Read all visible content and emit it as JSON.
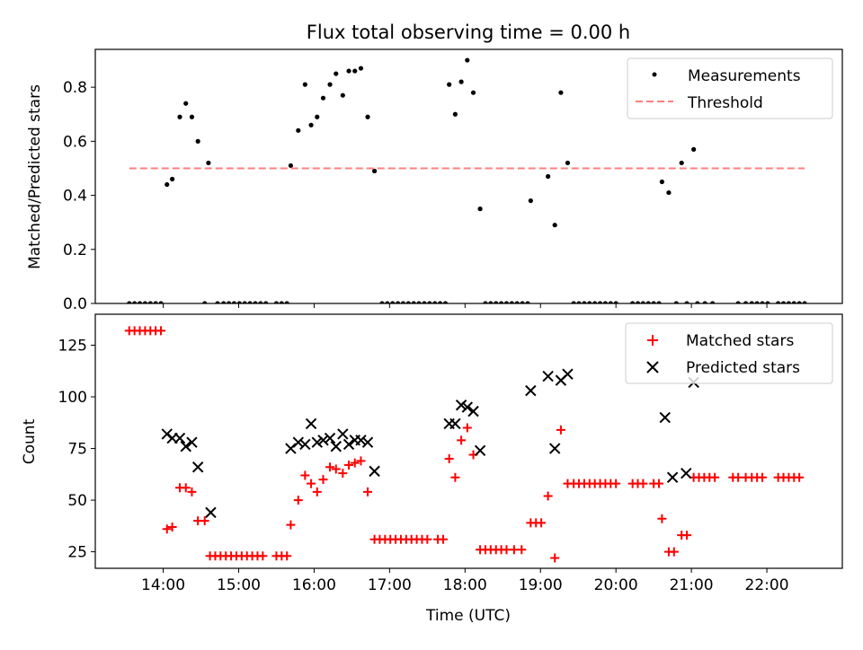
{
  "chart_data": [
    {
      "type": "scatter",
      "title": "Flux total observing time = 0.00 h",
      "xlabel": "",
      "ylabel": "Matched/Predicted stars",
      "xlim": [
        13.1,
        23.0
      ],
      "ylim": [
        0.0,
        0.94
      ],
      "xticks": [
        14,
        15,
        16,
        17,
        18,
        19,
        20,
        21,
        22
      ],
      "yticks": [
        0.0,
        0.2,
        0.4,
        0.6,
        0.8
      ],
      "ytick_labels": [
        "0.0",
        "0.2",
        "0.4",
        "0.6",
        "0.8"
      ],
      "legend": {
        "position": "top-right",
        "entries": [
          "Measurements",
          "Threshold"
        ]
      },
      "series": [
        {
          "name": "Measurements",
          "marker": "dot",
          "color": "#000000",
          "points": [
            [
              13.55,
              0
            ],
            [
              13.62,
              0
            ],
            [
              13.69,
              0
            ],
            [
              13.76,
              0
            ],
            [
              13.83,
              0
            ],
            [
              13.9,
              0
            ],
            [
              13.97,
              0
            ],
            [
              14.05,
              0.44
            ],
            [
              14.12,
              0.46
            ],
            [
              14.22,
              0.69
            ],
            [
              14.3,
              0.74
            ],
            [
              14.38,
              0.69
            ],
            [
              14.46,
              0.6
            ],
            [
              14.6,
              0.52
            ],
            [
              14.55,
              0
            ],
            [
              14.72,
              0
            ],
            [
              14.8,
              0
            ],
            [
              14.87,
              0
            ],
            [
              14.94,
              0
            ],
            [
              15.01,
              0
            ],
            [
              15.08,
              0
            ],
            [
              15.15,
              0
            ],
            [
              15.22,
              0
            ],
            [
              15.29,
              0
            ],
            [
              15.36,
              0
            ],
            [
              15.5,
              0
            ],
            [
              15.57,
              0
            ],
            [
              15.64,
              0
            ],
            [
              15.69,
              0.51
            ],
            [
              15.79,
              0.64
            ],
            [
              15.88,
              0.81
            ],
            [
              15.96,
              0.66
            ],
            [
              16.04,
              0.69
            ],
            [
              16.12,
              0.76
            ],
            [
              16.21,
              0.81
            ],
            [
              16.29,
              0.85
            ],
            [
              16.38,
              0.77
            ],
            [
              16.46,
              0.86
            ],
            [
              16.54,
              0.86
            ],
            [
              16.62,
              0.87
            ],
            [
              16.71,
              0.69
            ],
            [
              16.8,
              0.49
            ],
            [
              16.9,
              0
            ],
            [
              16.97,
              0
            ],
            [
              17.04,
              0
            ],
            [
              17.11,
              0
            ],
            [
              17.18,
              0
            ],
            [
              17.25,
              0
            ],
            [
              17.32,
              0
            ],
            [
              17.39,
              0
            ],
            [
              17.46,
              0
            ],
            [
              17.53,
              0
            ],
            [
              17.6,
              0
            ],
            [
              17.67,
              0
            ],
            [
              17.74,
              0
            ],
            [
              17.79,
              0.81
            ],
            [
              17.87,
              0.7
            ],
            [
              17.95,
              0.82
            ],
            [
              18.03,
              0.9
            ],
            [
              18.11,
              0.78
            ],
            [
              18.2,
              0.35
            ],
            [
              18.27,
              0
            ],
            [
              18.34,
              0
            ],
            [
              18.41,
              0
            ],
            [
              18.48,
              0
            ],
            [
              18.55,
              0
            ],
            [
              18.62,
              0
            ],
            [
              18.69,
              0
            ],
            [
              18.76,
              0
            ],
            [
              18.83,
              0
            ],
            [
              18.87,
              0.38
            ],
            [
              19.1,
              0.47
            ],
            [
              19.19,
              0.29
            ],
            [
              19.27,
              0.78
            ],
            [
              19.36,
              0.52
            ],
            [
              19.44,
              0
            ],
            [
              19.51,
              0
            ],
            [
              19.58,
              0
            ],
            [
              19.65,
              0
            ],
            [
              19.72,
              0
            ],
            [
              19.79,
              0
            ],
            [
              19.86,
              0
            ],
            [
              19.93,
              0
            ],
            [
              20.0,
              0
            ],
            [
              20.22,
              0
            ],
            [
              20.29,
              0
            ],
            [
              20.36,
              0
            ],
            [
              20.43,
              0
            ],
            [
              20.5,
              0
            ],
            [
              20.57,
              0
            ],
            [
              20.61,
              0.45
            ],
            [
              20.7,
              0.41
            ],
            [
              20.87,
              0.52
            ],
            [
              21.03,
              0.57
            ],
            [
              20.8,
              0
            ],
            [
              20.94,
              0
            ],
            [
              21.08,
              0
            ],
            [
              21.18,
              0
            ],
            [
              21.28,
              0
            ],
            [
              21.62,
              0
            ],
            [
              21.72,
              0
            ],
            [
              21.8,
              0
            ],
            [
              21.87,
              0
            ],
            [
              21.94,
              0
            ],
            [
              22.01,
              0
            ],
            [
              22.15,
              0
            ],
            [
              22.22,
              0
            ],
            [
              22.29,
              0
            ],
            [
              22.36,
              0
            ],
            [
              22.43,
              0
            ],
            [
              22.5,
              0
            ]
          ]
        },
        {
          "name": "Threshold",
          "style": "dashed",
          "color": "#ff7f7f",
          "points": [
            [
              13.55,
              0.5
            ],
            [
              22.5,
              0.5
            ]
          ]
        }
      ]
    },
    {
      "type": "scatter",
      "title": "",
      "xlabel": "Time (UTC)",
      "ylabel": "Count",
      "xlim": [
        13.1,
        23.0
      ],
      "ylim": [
        17,
        140
      ],
      "xticks": [
        14,
        15,
        16,
        17,
        18,
        19,
        20,
        21,
        22
      ],
      "xtick_labels": [
        "14:00",
        "15:00",
        "16:00",
        "17:00",
        "18:00",
        "19:00",
        "20:00",
        "21:00",
        "22:00"
      ],
      "yticks": [
        25,
        50,
        75,
        100,
        125
      ],
      "ytick_labels": [
        "25",
        "50",
        "75",
        "100",
        "125"
      ],
      "legend": {
        "position": "top-right",
        "entries": [
          "Matched stars",
          "Predicted stars"
        ]
      },
      "series": [
        {
          "name": "Matched stars",
          "marker": "plus",
          "color": "#ff0000",
          "points": [
            [
              13.55,
              132
            ],
            [
              13.62,
              132
            ],
            [
              13.69,
              132
            ],
            [
              13.76,
              132
            ],
            [
              13.83,
              132
            ],
            [
              13.9,
              132
            ],
            [
              13.97,
              132
            ],
            [
              14.05,
              36
            ],
            [
              14.12,
              37
            ],
            [
              14.22,
              56
            ],
            [
              14.3,
              56
            ],
            [
              14.38,
              54
            ],
            [
              14.46,
              40
            ],
            [
              14.55,
              40
            ],
            [
              14.62,
              23
            ],
            [
              14.69,
              23
            ],
            [
              14.76,
              23
            ],
            [
              14.83,
              23
            ],
            [
              14.9,
              23
            ],
            [
              14.97,
              23
            ],
            [
              15.04,
              23
            ],
            [
              15.11,
              23
            ],
            [
              15.18,
              23
            ],
            [
              15.25,
              23
            ],
            [
              15.32,
              23
            ],
            [
              15.5,
              23
            ],
            [
              15.57,
              23
            ],
            [
              15.64,
              23
            ],
            [
              15.69,
              38
            ],
            [
              15.79,
              50
            ],
            [
              15.88,
              62
            ],
            [
              15.96,
              58
            ],
            [
              16.04,
              54
            ],
            [
              16.12,
              60
            ],
            [
              16.21,
              66
            ],
            [
              16.29,
              65
            ],
            [
              16.38,
              63
            ],
            [
              16.46,
              67
            ],
            [
              16.54,
              68
            ],
            [
              16.62,
              69
            ],
            [
              16.71,
              54
            ],
            [
              16.8,
              31
            ],
            [
              16.87,
              31
            ],
            [
              16.94,
              31
            ],
            [
              17.01,
              31
            ],
            [
              17.08,
              31
            ],
            [
              17.15,
              31
            ],
            [
              17.22,
              31
            ],
            [
              17.29,
              31
            ],
            [
              17.36,
              31
            ],
            [
              17.43,
              31
            ],
            [
              17.5,
              31
            ],
            [
              17.64,
              31
            ],
            [
              17.71,
              31
            ],
            [
              17.79,
              70
            ],
            [
              17.87,
              61
            ],
            [
              17.95,
              79
            ],
            [
              18.03,
              85
            ],
            [
              18.11,
              72
            ],
            [
              18.2,
              26
            ],
            [
              18.27,
              26
            ],
            [
              18.34,
              26
            ],
            [
              18.41,
              26
            ],
            [
              18.48,
              26
            ],
            [
              18.55,
              26
            ],
            [
              18.65,
              26
            ],
            [
              18.75,
              26
            ],
            [
              18.87,
              39
            ],
            [
              18.94,
              39
            ],
            [
              19.01,
              39
            ],
            [
              19.1,
              52
            ],
            [
              19.19,
              22
            ],
            [
              19.27,
              84
            ],
            [
              19.36,
              58
            ],
            [
              19.44,
              58
            ],
            [
              19.51,
              58
            ],
            [
              19.58,
              58
            ],
            [
              19.65,
              58
            ],
            [
              19.72,
              58
            ],
            [
              19.79,
              58
            ],
            [
              19.86,
              58
            ],
            [
              19.93,
              58
            ],
            [
              20.0,
              58
            ],
            [
              20.22,
              58
            ],
            [
              20.29,
              58
            ],
            [
              20.36,
              58
            ],
            [
              20.5,
              58
            ],
            [
              20.57,
              58
            ],
            [
              20.61,
              41
            ],
            [
              20.7,
              25
            ],
            [
              20.77,
              25
            ],
            [
              20.87,
              33
            ],
            [
              20.94,
              33
            ],
            [
              21.03,
              61
            ],
            [
              21.1,
              61
            ],
            [
              21.17,
              61
            ],
            [
              21.24,
              61
            ],
            [
              21.31,
              61
            ],
            [
              21.55,
              61
            ],
            [
              21.62,
              61
            ],
            [
              21.72,
              61
            ],
            [
              21.8,
              61
            ],
            [
              21.87,
              61
            ],
            [
              21.94,
              61
            ],
            [
              22.15,
              61
            ],
            [
              22.22,
              61
            ],
            [
              22.29,
              61
            ],
            [
              22.36,
              61
            ],
            [
              22.43,
              61
            ]
          ]
        },
        {
          "name": "Predicted stars",
          "marker": "x",
          "color": "#000000",
          "points": [
            [
              14.05,
              82
            ],
            [
              14.12,
              80
            ],
            [
              14.22,
              80
            ],
            [
              14.3,
              76
            ],
            [
              14.38,
              78
            ],
            [
              14.46,
              66
            ],
            [
              14.63,
              44
            ],
            [
              15.69,
              75
            ],
            [
              15.79,
              78
            ],
            [
              15.88,
              77
            ],
            [
              15.96,
              87
            ],
            [
              16.04,
              78
            ],
            [
              16.12,
              79
            ],
            [
              16.21,
              80
            ],
            [
              16.29,
              76
            ],
            [
              16.38,
              82
            ],
            [
              16.46,
              77
            ],
            [
              16.54,
              79
            ],
            [
              16.62,
              79
            ],
            [
              16.71,
              78
            ],
            [
              16.8,
              64
            ],
            [
              17.79,
              87
            ],
            [
              17.87,
              87
            ],
            [
              17.95,
              96
            ],
            [
              18.03,
              95
            ],
            [
              18.11,
              93
            ],
            [
              18.2,
              74
            ],
            [
              18.87,
              103
            ],
            [
              19.1,
              110
            ],
            [
              19.19,
              75
            ],
            [
              19.27,
              108
            ],
            [
              19.36,
              111
            ],
            [
              20.65,
              90
            ],
            [
              20.75,
              61
            ],
            [
              20.93,
              63
            ],
            [
              21.03,
              107
            ]
          ]
        }
      ]
    }
  ]
}
